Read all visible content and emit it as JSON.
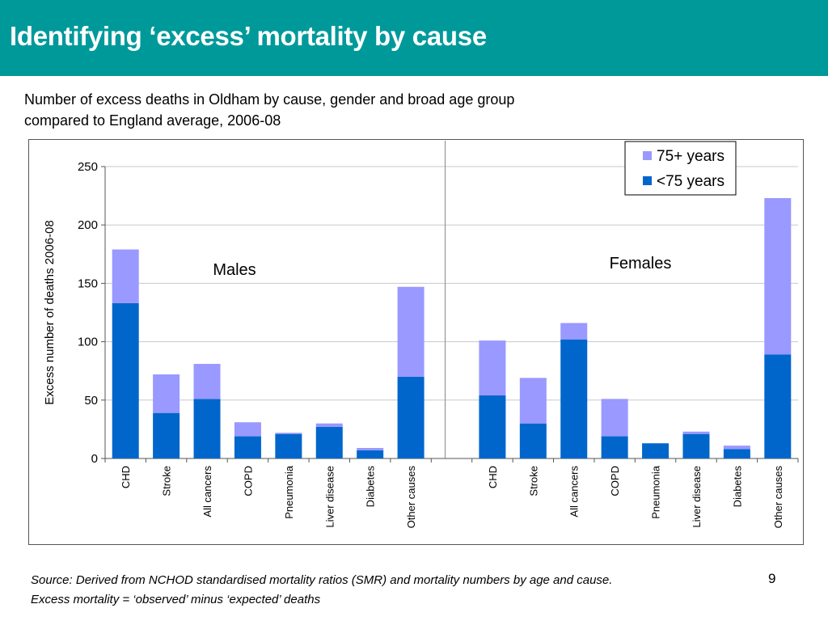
{
  "slide": {
    "title": "Identifying ‘excess’ mortality by cause",
    "subtitle_line1": "Number of excess deaths in Oldham by cause, gender and broad age group",
    "subtitle_line2": "compared to England average, 2006-08",
    "source_line1": "Source: Derived from NCHOD standardised mortality ratios (SMR) and mortality numbers by age and cause.",
    "source_line2": "Excess mortality =  ‘observed’ minus ‘expected’ deaths",
    "page_number": "9"
  },
  "colors": {
    "title_bar": "#00999a",
    "under75": "#0066cc",
    "over75": "#9999ff"
  },
  "chart_data": {
    "type": "bar",
    "stacked": true,
    "ylabel": "Excess number of deaths 2006-08",
    "ylim": [
      0,
      250
    ],
    "yticks": [
      0,
      50,
      100,
      150,
      200,
      250
    ],
    "grid": true,
    "legend_position": "top-right",
    "groups": [
      "Males",
      "Females"
    ],
    "categories": [
      "CHD",
      "Stroke",
      "All cancers",
      "COPD",
      "Pneumonia",
      "Liver disease",
      "Diabetes",
      "Other causes"
    ],
    "series": [
      {
        "name": "<75 years",
        "values_by_group": [
          [
            133,
            39,
            51,
            19,
            21,
            27,
            7,
            70
          ],
          [
            54,
            30,
            102,
            19,
            13,
            21,
            8,
            89
          ]
        ]
      },
      {
        "name": "75+ years",
        "values_by_group": [
          [
            46,
            33,
            30,
            12,
            1,
            3,
            2,
            77
          ],
          [
            47,
            39,
            14,
            32,
            0,
            2,
            3,
            134
          ]
        ]
      }
    ],
    "legend_order": [
      "75+ years",
      "<75 years"
    ]
  }
}
